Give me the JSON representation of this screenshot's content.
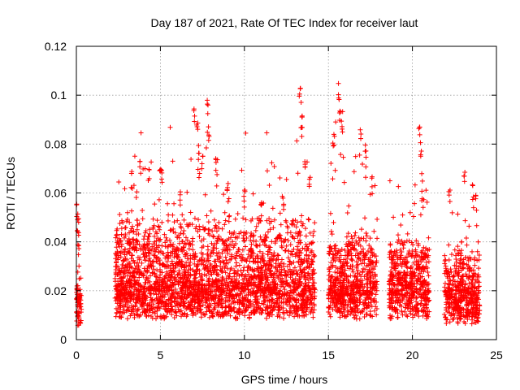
{
  "chart_data": {
    "type": "scatter",
    "title": "Day 187 of 2021, Rate Of TEC Index for receiver laut",
    "xlabel": "GPS time / hours",
    "ylabel": "ROTI / TECUs",
    "xlim": [
      0,
      25
    ],
    "ylim": [
      0,
      0.12
    ],
    "x_ticks": [
      0,
      5,
      10,
      15,
      20,
      25
    ],
    "y_ticks": [
      0,
      0.02,
      0.04,
      0.06,
      0.08,
      0.1,
      0.12
    ],
    "x_tick_labels": [
      "0",
      "5",
      "10",
      "15",
      "20",
      "25"
    ],
    "y_tick_labels": [
      "0",
      "0.02",
      "0.04",
      "0.06",
      "0.08",
      "0.1",
      "0.12"
    ],
    "grid": true,
    "marker": "+",
    "color": "#ff0000",
    "segments": [
      {
        "x_start": 0.0,
        "x_end": 0.3,
        "base": 0.013,
        "spread": 0.012,
        "max": 0.057
      },
      {
        "x_start": 2.3,
        "x_end": 14.2,
        "base": 0.016,
        "spread": 0.03,
        "max": 0.105
      },
      {
        "x_start": 15.0,
        "x_end": 17.9,
        "base": 0.016,
        "spread": 0.026,
        "max": 0.105
      },
      {
        "x_start": 18.6,
        "x_end": 21.0,
        "base": 0.016,
        "spread": 0.022,
        "max": 0.088
      },
      {
        "x_start": 21.9,
        "x_end": 24.0,
        "base": 0.014,
        "spread": 0.02,
        "max": 0.071
      }
    ],
    "peaks": [
      {
        "x": 0.05,
        "y": 0.057
      },
      {
        "x": 0.1,
        "y": 0.05
      },
      {
        "x": 0.15,
        "y": 0.044
      },
      {
        "x": 3.3,
        "y": 0.069
      },
      {
        "x": 3.8,
        "y": 0.073
      },
      {
        "x": 4.3,
        "y": 0.071
      },
      {
        "x": 5.0,
        "y": 0.077
      },
      {
        "x": 5.1,
        "y": 0.072
      },
      {
        "x": 6.2,
        "y": 0.062
      },
      {
        "x": 7.0,
        "y": 0.095
      },
      {
        "x": 7.2,
        "y": 0.092
      },
      {
        "x": 7.3,
        "y": 0.081
      },
      {
        "x": 7.5,
        "y": 0.076
      },
      {
        "x": 7.8,
        "y": 0.098
      },
      {
        "x": 7.9,
        "y": 0.089
      },
      {
        "x": 8.3,
        "y": 0.075
      },
      {
        "x": 9.0,
        "y": 0.064
      },
      {
        "x": 10.0,
        "y": 0.062
      },
      {
        "x": 11.0,
        "y": 0.058
      },
      {
        "x": 12.3,
        "y": 0.06
      },
      {
        "x": 13.3,
        "y": 0.104
      },
      {
        "x": 13.4,
        "y": 0.098
      },
      {
        "x": 13.4,
        "y": 0.09
      },
      {
        "x": 13.6,
        "y": 0.078
      },
      {
        "x": 13.9,
        "y": 0.07
      },
      {
        "x": 15.3,
        "y": 0.085
      },
      {
        "x": 15.6,
        "y": 0.105
      },
      {
        "x": 15.7,
        "y": 0.096
      },
      {
        "x": 15.8,
        "y": 0.09
      },
      {
        "x": 16.9,
        "y": 0.087
      },
      {
        "x": 17.2,
        "y": 0.081
      },
      {
        "x": 17.6,
        "y": 0.067
      },
      {
        "x": 20.4,
        "y": 0.088
      },
      {
        "x": 20.5,
        "y": 0.081
      },
      {
        "x": 20.6,
        "y": 0.062
      },
      {
        "x": 22.2,
        "y": 0.062
      },
      {
        "x": 23.1,
        "y": 0.071
      },
      {
        "x": 23.6,
        "y": 0.065
      },
      {
        "x": 23.8,
        "y": 0.06
      }
    ]
  }
}
